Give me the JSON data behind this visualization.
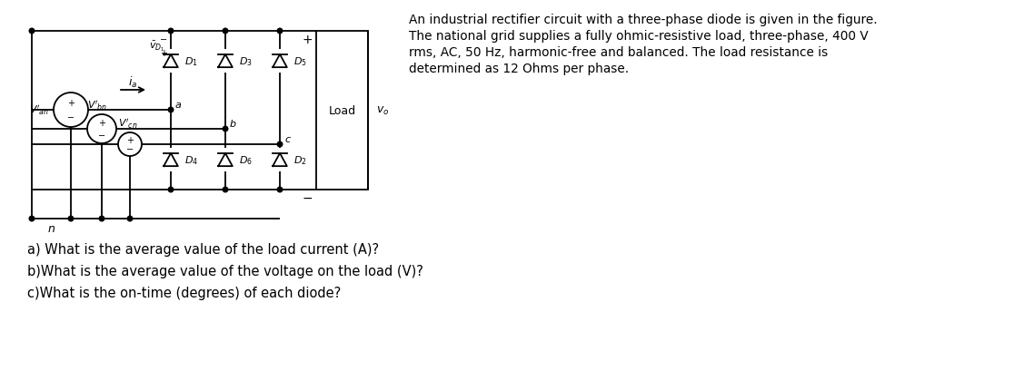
{
  "bg_color": "#ffffff",
  "text_color": "#000000",
  "description_lines": [
    "An industrial rectifier circuit with a three-phase diode is given in the figure.",
    "The national grid supplies a fully ohmic-resistive load, three-phase, 400 V",
    "rms, AC, 50 Hz, harmonic-free and balanced. The load resistance is",
    "determined as 12 Ohms per phase."
  ],
  "question_a": "a) What is the average value of the load current (A)?",
  "question_b": "b)What is the average value of the voltage on the load (V)?",
  "question_c": "c)What is the on-time (degrees) of each diode?",
  "load_label": "Load",
  "upper_diode_labels": [
    "$D_1$",
    "$D_3$",
    "$D_5$"
  ],
  "lower_diode_labels": [
    "$D_4$",
    "$D_6$",
    "$D_2$"
  ],
  "phase_labels": [
    "a",
    "b",
    "c"
  ],
  "neutral_label": "n"
}
